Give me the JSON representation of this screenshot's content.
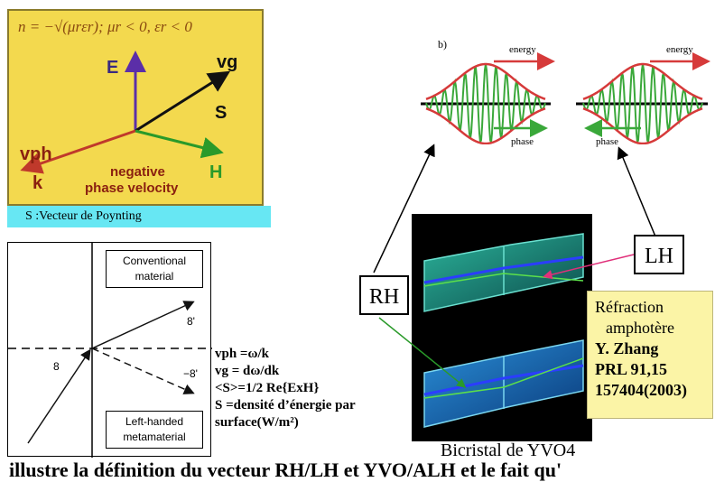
{
  "vector_diagram": {
    "formula": "n = −√(μrεr);  μr < 0,  εr < 0",
    "labels": {
      "E": "E",
      "vg": "vg",
      "S": "S",
      "vph": "vph",
      "k": "k",
      "H": "H"
    },
    "note_line1": "negative",
    "note_line2": "phase velocity",
    "caption": "S :Vecteur de Poynting",
    "colors": {
      "panel": "#f3d94e",
      "border": "#8a7b2c",
      "E": "#5b2ea8",
      "k": "#c0392b",
      "H": "#2a9a2a",
      "caption_bg": "#67e7f3"
    }
  },
  "refraction_diagram": {
    "conventional_line1": "Conventional",
    "conventional_line2": "material",
    "lhm_line1": "Left-handed",
    "lhm_line2": "metamaterial",
    "angle_incident": "8",
    "angle_refracted": "8'",
    "angle_negative": "−8'"
  },
  "equations": {
    "vph": "vph =ω/k",
    "vg": "vg = dω/dk",
    "poynting": "<S>=1/2 Re{ExH}",
    "density_line1": "S =densité d’énergie par",
    "density_line2": "surface(W/m²)"
  },
  "wave_packets": {
    "panel_label": "b)",
    "energy_label": "energy",
    "phase_label": "phase",
    "colors": {
      "envelope": "#d63a3a",
      "carrier": "#3aa83a",
      "axis": "#000000"
    }
  },
  "bicrystal": {
    "rh_label": "RH",
    "lh_label": "LH",
    "caption": "Bicristal de YVO4"
  },
  "reference": {
    "line1": "Réfraction",
    "line2": "amphotère",
    "line3": "Y. Zhang",
    "line4": "PRL 91,15",
    "line5": "157404(2003)",
    "bg": "#fbf4a6"
  },
  "bottom_text": "illustre la définition du vecteur RH/LH et YVO/ALH et le fait qu'"
}
